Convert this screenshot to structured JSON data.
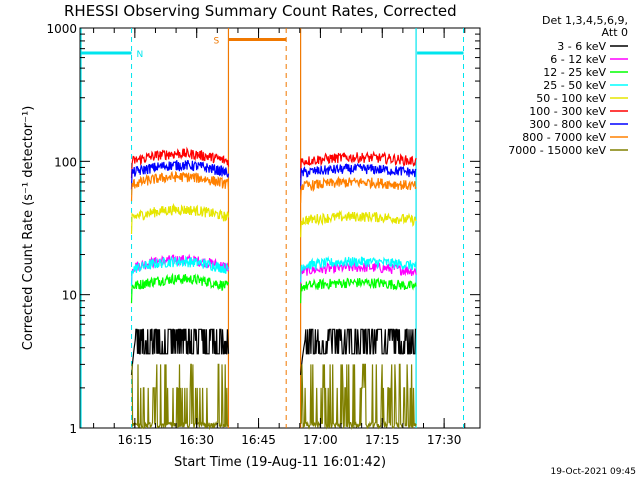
{
  "chart_data": {
    "type": "line",
    "title": "RHESSI Observing Summary Count Rates, Corrected",
    "xlabel": "Start Time (19-Aug-11 16:01:42)",
    "ylabel": "Corrected Count Rate (s⁻¹ detector⁻¹)",
    "x_axis": {
      "unit": "minutes after 16:01:42",
      "range": [
        0,
        97
      ]
    },
    "y_axis": {
      "scale": "log",
      "range": [
        1,
        1000
      ]
    },
    "x_ticks": [
      {
        "label": "16:15",
        "value": 13.3
      },
      {
        "label": "16:30",
        "value": 28.3
      },
      {
        "label": "16:45",
        "value": 43.3
      },
      {
        "label": "17:00",
        "value": 58.3
      },
      {
        "label": "17:15",
        "value": 73.3
      },
      {
        "label": "17:30",
        "value": 88.3
      }
    ],
    "y_ticks": [
      {
        "label": "1",
        "value": 1
      },
      {
        "label": "10",
        "value": 10
      },
      {
        "label": "100",
        "value": 100
      },
      {
        "label": "1000",
        "value": 1000
      }
    ],
    "legend": {
      "placement": "right",
      "header": [
        "Det 1,3,4,5,6,9,",
        "Att 0"
      ],
      "entries": [
        {
          "label": "3 - 6 keV",
          "color": "#000000"
        },
        {
          "label": "6 - 12 keV",
          "color": "#ff00ff"
        },
        {
          "label": "12 - 25 keV",
          "color": "#00ff00"
        },
        {
          "label": "25 - 50 keV",
          "color": "#00ffff"
        },
        {
          "label": "50 - 100 keV",
          "color": "#e6e600"
        },
        {
          "label": "100 - 300 keV",
          "color": "#ff0000"
        },
        {
          "label": "300 - 800 keV",
          "color": "#0000ff"
        },
        {
          "label": "800 - 7000 keV",
          "color": "#ff8000"
        },
        {
          "label": "7000 - 15000 keV",
          "color": "#808000"
        }
      ]
    },
    "segments": [
      [
        12.5,
        36
      ],
      [
        53.5,
        81.5
      ]
    ],
    "series_levels": [
      {
        "name": "3 - 6 keV",
        "color": "#000000",
        "level_first": 4.2,
        "level_second": 4.6
      },
      {
        "name": "6 - 12 keV",
        "color": "#ff00ff",
        "level_first": 16,
        "level_second": 15
      },
      {
        "name": "12 - 25 keV",
        "color": "#00ff00",
        "level_first": 11.5,
        "level_second": 11.5
      },
      {
        "name": "25 - 50 keV",
        "color": "#00ffff",
        "level_first": 15.5,
        "level_second": 16.5
      },
      {
        "name": "50 - 100 keV",
        "color": "#e6e600",
        "level_first": 38,
        "level_second": 36
      },
      {
        "name": "100 - 300 keV",
        "color": "#ff0000",
        "level_first": 100,
        "level_second": 100
      },
      {
        "name": "300 - 800 keV",
        "color": "#0000ff",
        "level_first": 82,
        "level_second": 82
      },
      {
        "name": "800 - 7000 keV",
        "color": "#ff8000",
        "level_first": 67,
        "level_second": 65
      },
      {
        "name": "7000 - 15000 keV",
        "color": "#808000",
        "level_first": 1.6,
        "level_second": 1.6
      }
    ],
    "annotations": {
      "night": {
        "label": "N",
        "color": "#00e5ee",
        "bars": [
          [
            0,
            12.5
          ],
          [
            81.5,
            93
          ]
        ],
        "level": 650,
        "boundaries": [
          0,
          12.5,
          81.5,
          93
        ]
      },
      "saa": {
        "label": "S",
        "color": "#f07800",
        "bars": [
          [
            36,
            50
          ]
        ],
        "level": 820,
        "boundaries": [
          36,
          50,
          53.5
        ]
      }
    },
    "timestamp": "19-Oct-2021 09:45"
  }
}
